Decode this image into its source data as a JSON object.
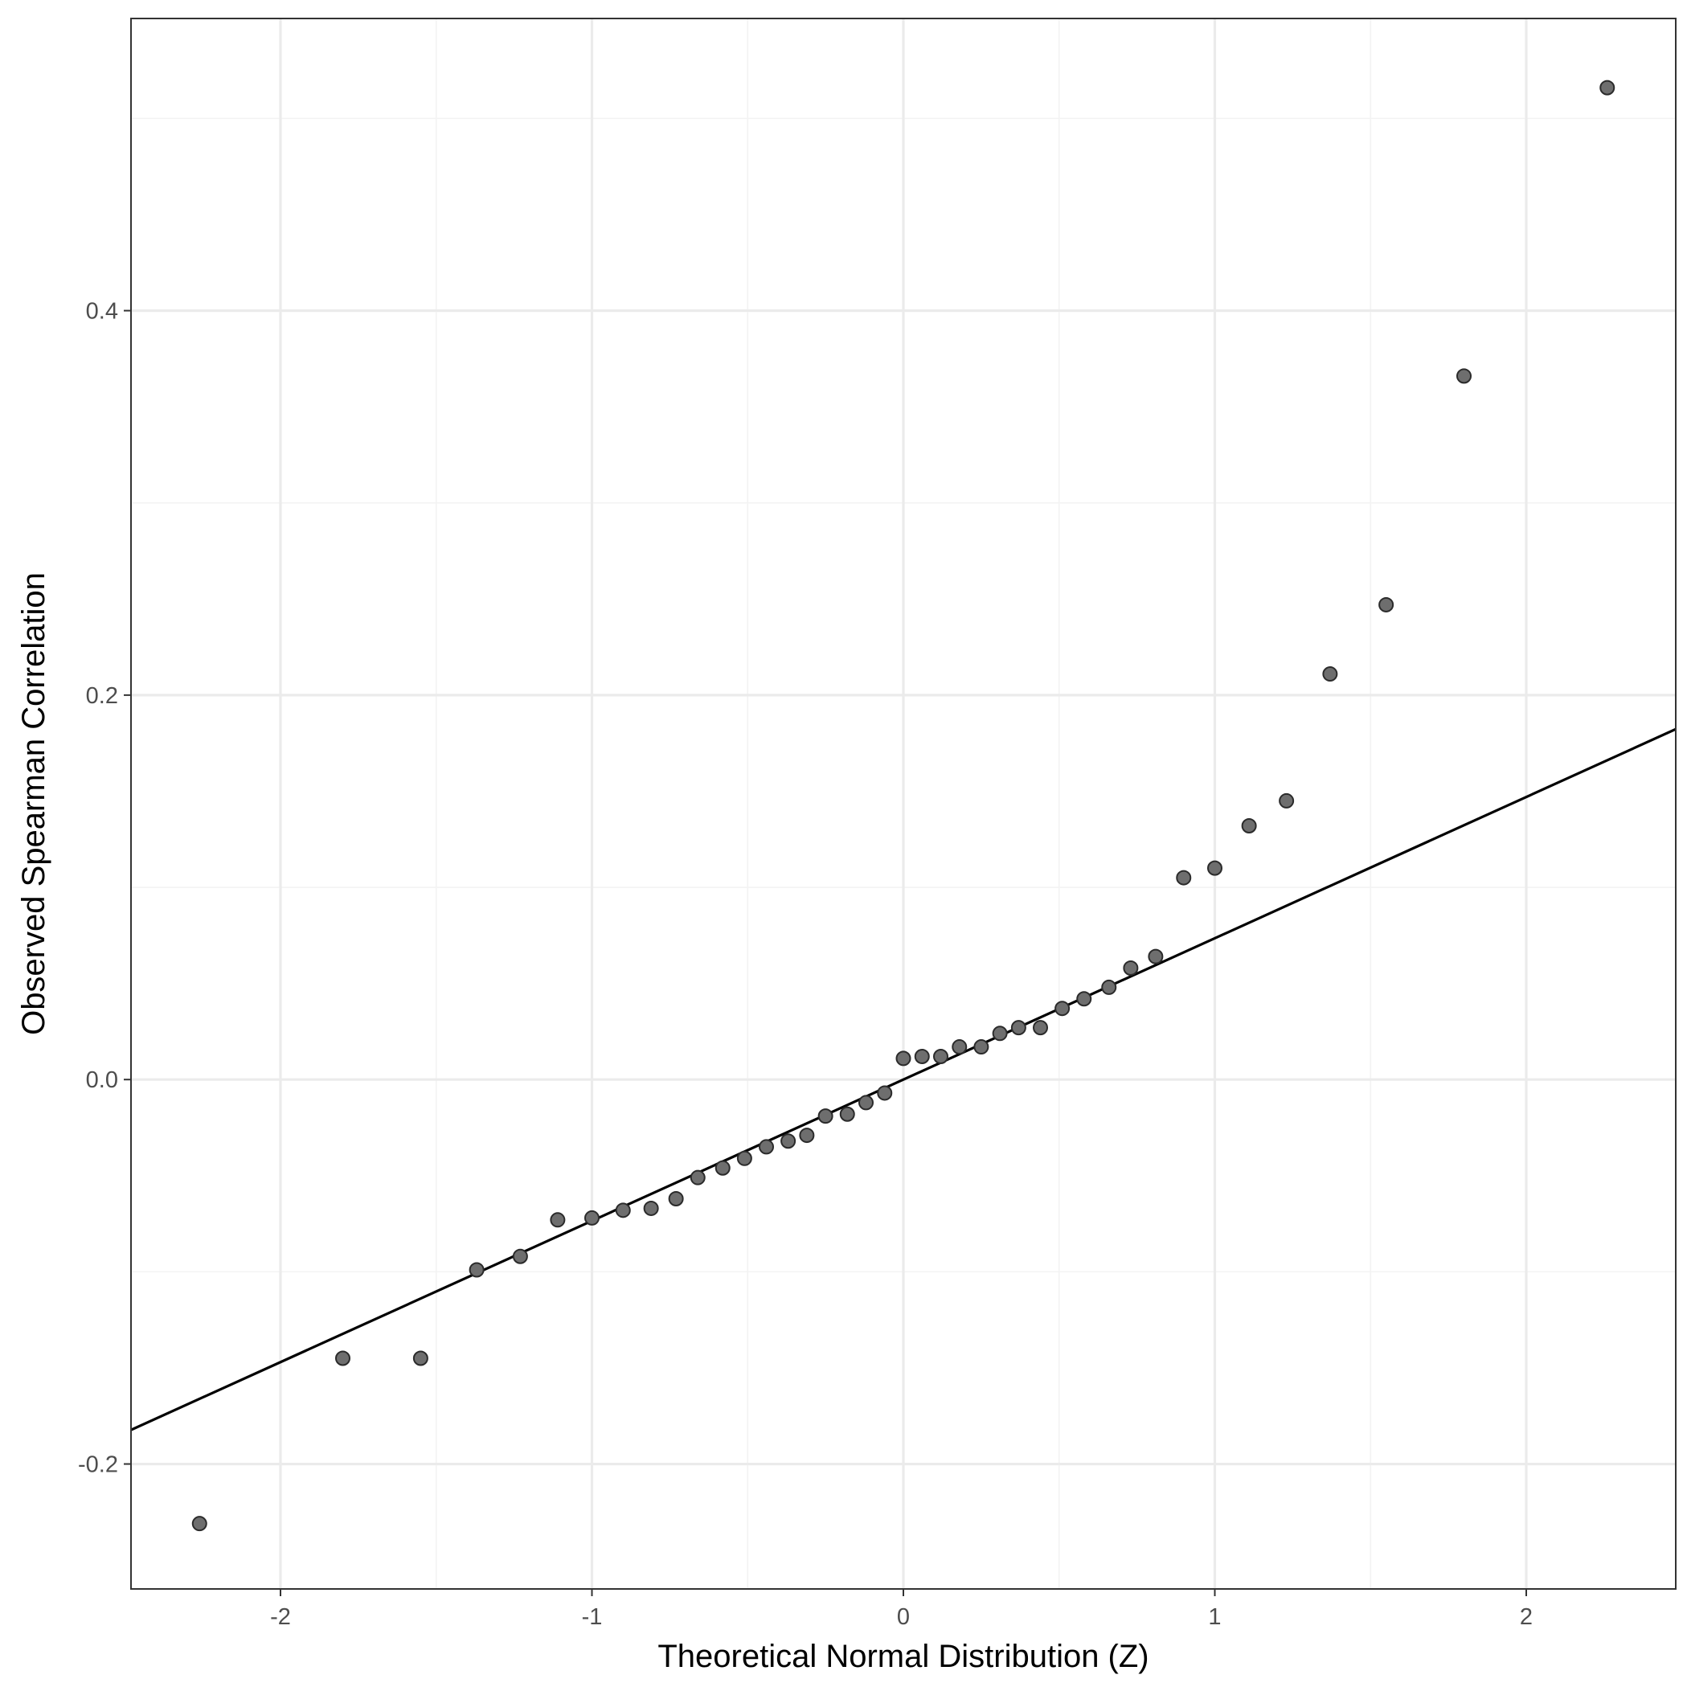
{
  "chart_data": {
    "type": "scatter",
    "subtype": "qq-plot",
    "title": "",
    "xlabel": "Theoretical Normal Distribution (Z)",
    "ylabel": "Observed Spearman Correlation",
    "xlim": [
      -2.48,
      2.48
    ],
    "ylim": [
      -0.265,
      0.552
    ],
    "x_ticks": [
      {
        "value": -2,
        "label": "-2"
      },
      {
        "value": -1,
        "label": "-1"
      },
      {
        "value": 0,
        "label": "0"
      },
      {
        "value": 1,
        "label": "1"
      },
      {
        "value": 2,
        "label": "2"
      }
    ],
    "y_ticks": [
      {
        "value": -0.2,
        "label": "-0.2"
      },
      {
        "value": 0.0,
        "label": "0.0"
      },
      {
        "value": 0.2,
        "label": "0.2"
      },
      {
        "value": 0.4,
        "label": "0.4"
      }
    ],
    "x_minor": [
      -1.5,
      -0.5,
      0.5,
      1.5
    ],
    "y_minor": [
      -0.1,
      0.1,
      0.3,
      0.5
    ],
    "grid": true,
    "theme": "bw",
    "point_color": "#6e6e6e",
    "line_color": "#000000",
    "reference_line": {
      "intercept": 0.0,
      "slope": 0.0735
    },
    "points": [
      {
        "x": -2.26,
        "y": -0.231
      },
      {
        "x": -1.8,
        "y": -0.145
      },
      {
        "x": -1.55,
        "y": -0.145
      },
      {
        "x": -1.37,
        "y": -0.099
      },
      {
        "x": -1.23,
        "y": -0.092
      },
      {
        "x": -1.11,
        "y": -0.073
      },
      {
        "x": -1.0,
        "y": -0.072
      },
      {
        "x": -0.9,
        "y": -0.068
      },
      {
        "x": -0.81,
        "y": -0.067
      },
      {
        "x": -0.73,
        "y": -0.062
      },
      {
        "x": -0.66,
        "y": -0.051
      },
      {
        "x": -0.58,
        "y": -0.046
      },
      {
        "x": -0.51,
        "y": -0.041
      },
      {
        "x": -0.44,
        "y": -0.035
      },
      {
        "x": -0.37,
        "y": -0.032
      },
      {
        "x": -0.31,
        "y": -0.029
      },
      {
        "x": -0.25,
        "y": -0.019
      },
      {
        "x": -0.18,
        "y": -0.018
      },
      {
        "x": -0.12,
        "y": -0.012
      },
      {
        "x": -0.06,
        "y": -0.007
      },
      {
        "x": 0.0,
        "y": 0.011
      },
      {
        "x": 0.06,
        "y": 0.012
      },
      {
        "x": 0.12,
        "y": 0.012
      },
      {
        "x": 0.18,
        "y": 0.017
      },
      {
        "x": 0.25,
        "y": 0.017
      },
      {
        "x": 0.31,
        "y": 0.024
      },
      {
        "x": 0.37,
        "y": 0.027
      },
      {
        "x": 0.44,
        "y": 0.027
      },
      {
        "x": 0.51,
        "y": 0.037
      },
      {
        "x": 0.58,
        "y": 0.042
      },
      {
        "x": 0.66,
        "y": 0.048
      },
      {
        "x": 0.73,
        "y": 0.058
      },
      {
        "x": 0.81,
        "y": 0.064
      },
      {
        "x": 0.9,
        "y": 0.105
      },
      {
        "x": 1.0,
        "y": 0.11
      },
      {
        "x": 1.11,
        "y": 0.132
      },
      {
        "x": 1.23,
        "y": 0.145
      },
      {
        "x": 1.37,
        "y": 0.211
      },
      {
        "x": 1.55,
        "y": 0.247
      },
      {
        "x": 1.8,
        "y": 0.366
      },
      {
        "x": 2.26,
        "y": 0.516
      }
    ]
  }
}
